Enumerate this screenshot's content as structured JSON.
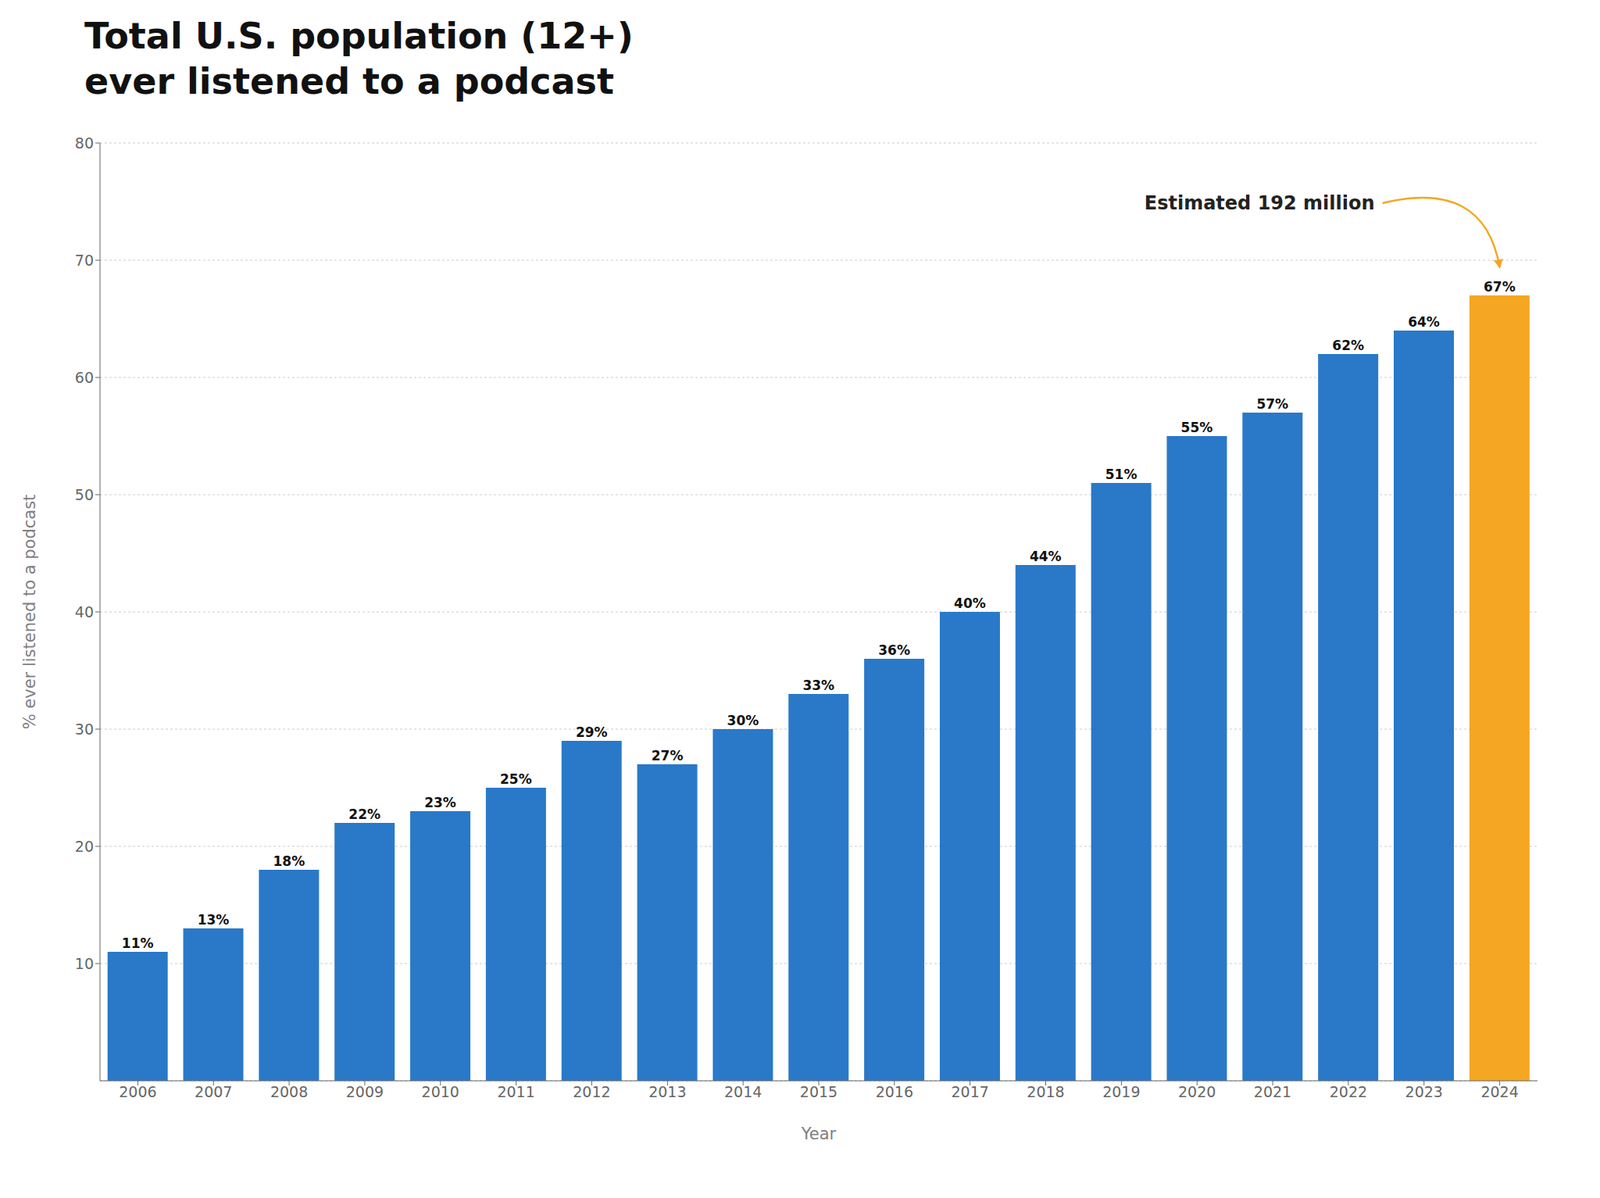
{
  "chart_data": {
    "type": "bar",
    "title": "Total U.S. population (12+)",
    "subtitle": "ever listened to a podcast",
    "x_label": "Year",
    "y_label": "% ever listened to a podcast",
    "categories": [
      "2006",
      "2007",
      "2008",
      "2009",
      "2010",
      "2011",
      "2012",
      "2013",
      "2014",
      "2015",
      "2016",
      "2017",
      "2018",
      "2019",
      "2020",
      "2021",
      "2022",
      "2023",
      "2024"
    ],
    "values": [
      11,
      13,
      18,
      22,
      23,
      25,
      29,
      27,
      30,
      33,
      36,
      40,
      44,
      51,
      55,
      57,
      62,
      64,
      67
    ],
    "value_labels": [
      "11%",
      "13%",
      "18%",
      "22%",
      "23%",
      "25%",
      "29%",
      "27%",
      "30%",
      "33%",
      "36%",
      "40%",
      "44%",
      "51%",
      "55%",
      "57%",
      "62%",
      "64%",
      "67%"
    ],
    "colors": [
      "#2979C8",
      "#2979C8",
      "#2979C8",
      "#2979C8",
      "#2979C8",
      "#2979C8",
      "#2979C8",
      "#2979C8",
      "#2979C8",
      "#2979C8",
      "#2979C8",
      "#2979C8",
      "#2979C8",
      "#2979C8",
      "#2979C8",
      "#2979C8",
      "#2979C8",
      "#2979C8",
      "#F5A623"
    ],
    "ylim": [
      0,
      80
    ],
    "yticks": [
      10,
      20,
      30,
      40,
      50,
      60,
      70,
      80
    ],
    "grid": true,
    "data_labels": true,
    "annotation": "Estimated 192 million"
  }
}
